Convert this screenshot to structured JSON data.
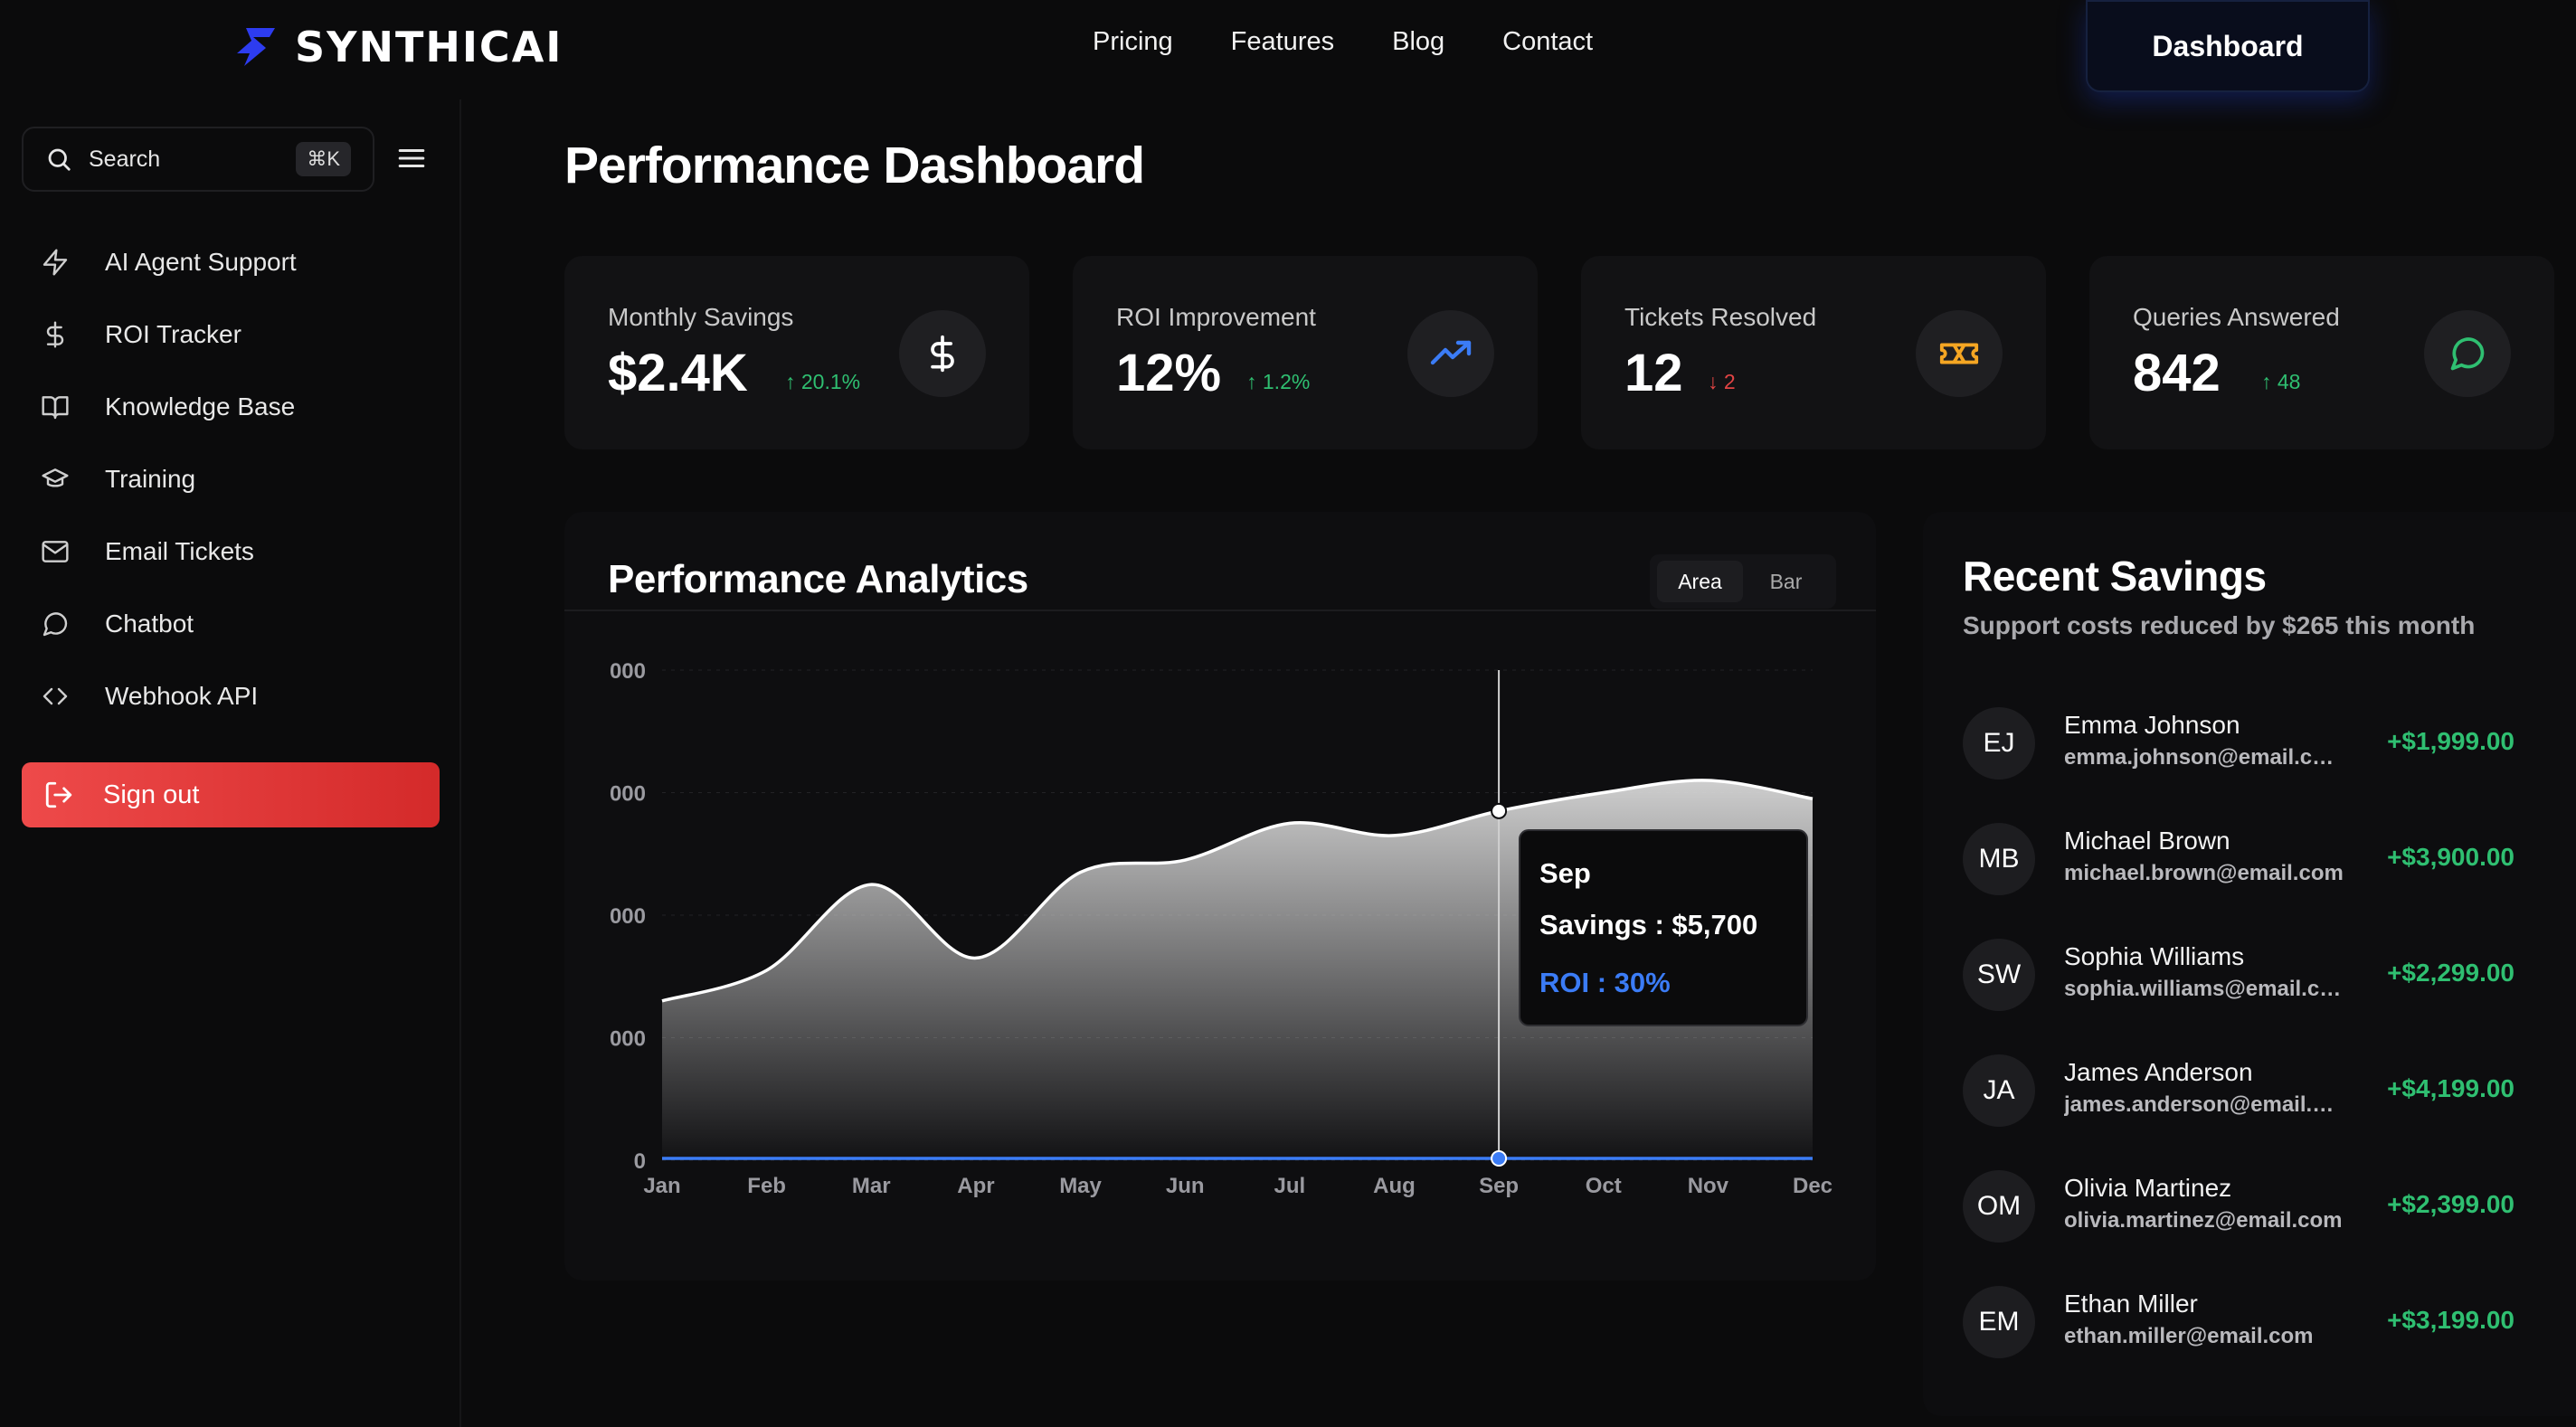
{
  "brand": {
    "name": "SYNTHICAI",
    "accent": "#2d3cf0"
  },
  "nav": {
    "links": [
      "Pricing",
      "Features",
      "Blog",
      "Contact"
    ],
    "dashboard_label": "Dashboard"
  },
  "sidebar": {
    "search_label": "Search",
    "search_shortcut": "⌘K",
    "items": [
      {
        "label": "AI Agent Support",
        "icon": "bolt-icon"
      },
      {
        "label": "ROI Tracker",
        "icon": "dollar-icon"
      },
      {
        "label": "Knowledge Base",
        "icon": "book-icon"
      },
      {
        "label": "Training",
        "icon": "graduation-cap-icon"
      },
      {
        "label": "Email Tickets",
        "icon": "mail-icon"
      },
      {
        "label": "Chatbot",
        "icon": "chat-icon"
      },
      {
        "label": "Webhook API",
        "icon": "code-icon"
      }
    ],
    "signout_label": "Sign out"
  },
  "page_title": "Performance Dashboard",
  "stats": [
    {
      "title": "Monthly Savings",
      "value": "$2.4K",
      "delta": "20.1%",
      "trend": "up",
      "icon": "dollar-icon",
      "icon_color": "#ffffff"
    },
    {
      "title": "ROI Improvement",
      "value": "12%",
      "delta": "1.2%",
      "trend": "up",
      "icon": "trending-up-icon",
      "icon_color": "#3b7cf6"
    },
    {
      "title": "Tickets Resolved",
      "value": "12",
      "delta": "2",
      "trend": "down",
      "icon": "ticket-icon",
      "icon_color": "#f5a623"
    },
    {
      "title": "Queries Answered",
      "value": "842",
      "delta": "48",
      "trend": "up",
      "icon": "message-circle-icon",
      "icon_color": "#2fbf71"
    }
  ],
  "analytics": {
    "title": "Performance Analytics",
    "toggle": [
      "Area",
      "Bar"
    ],
    "active_toggle": "Area",
    "tooltip": {
      "month": "Sep",
      "savings_label": "Savings : $5,700",
      "roi_label": "ROI : 30%",
      "roi_color": "#3b7cf6"
    }
  },
  "chart_data": {
    "type": "area",
    "categories": [
      "Jan",
      "Feb",
      "Mar",
      "Apr",
      "May",
      "Jun",
      "Jul",
      "Aug",
      "Sep",
      "Oct",
      "Nov",
      "Dec"
    ],
    "y_tick_labels": [
      "000",
      "000",
      "000",
      "000",
      "0"
    ],
    "series": [
      {
        "values": [
          2600,
          3100,
          4500,
          3300,
          4700,
          4900,
          5500,
          5300,
          5700,
          6000,
          6200,
          5900
        ]
      },
      {
        "values": [
          5,
          5,
          5,
          5,
          5,
          5,
          5,
          5,
          30,
          5,
          5,
          5
        ]
      }
    ],
    "ylim": [
      0,
      8000
    ],
    "highlight_index": 8,
    "grid": true
  },
  "recent": {
    "title": "Recent Savings",
    "subtitle": "Support costs reduced by $265 this month",
    "rows": [
      {
        "initials": "EJ",
        "name": "Emma Johnson",
        "email": "emma.johnson@email.com",
        "amount": "+$1,999.00"
      },
      {
        "initials": "MB",
        "name": "Michael Brown",
        "email": "michael.brown@email.com",
        "amount": "+$3,900.00"
      },
      {
        "initials": "SW",
        "name": "Sophia Williams",
        "email": "sophia.williams@email.com",
        "amount": "+$2,299.00"
      },
      {
        "initials": "JA",
        "name": "James Anderson",
        "email": "james.anderson@email.com",
        "amount": "+$4,199.00"
      },
      {
        "initials": "OM",
        "name": "Olivia Martinez",
        "email": "olivia.martinez@email.com",
        "amount": "+$2,399.00"
      },
      {
        "initials": "EM",
        "name": "Ethan Miller",
        "email": "ethan.miller@email.com",
        "amount": "+$3,199.00"
      }
    ]
  }
}
